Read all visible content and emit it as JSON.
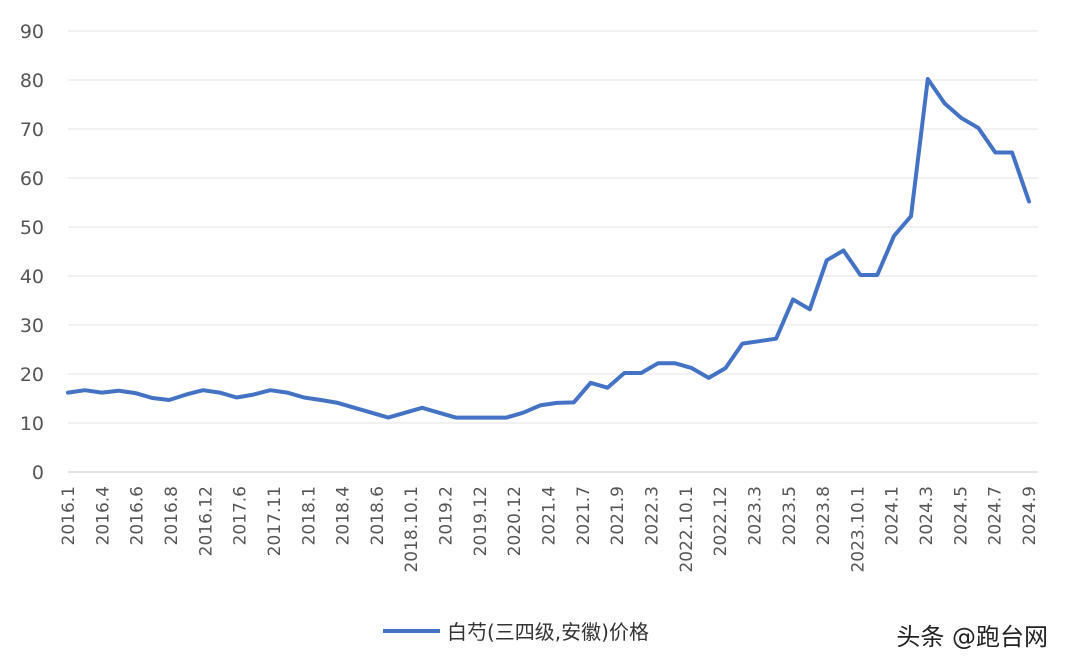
{
  "chart_data": {
    "type": "line",
    "title": "",
    "xlabel": "",
    "ylabel": "",
    "ylim": [
      0,
      90
    ],
    "yticks": [
      0,
      10,
      20,
      30,
      40,
      50,
      60,
      70,
      80,
      90
    ],
    "grid": true,
    "legend_position": "bottom",
    "x_tick_labels": [
      "2016.1",
      "2016.4",
      "2016.6",
      "2016.8",
      "2016.12",
      "2017.6",
      "2017.11",
      "2018.1",
      "2018.4",
      "2018.6",
      "2018.10.1",
      "2019.2",
      "2019.12",
      "2020.12",
      "2021.4",
      "2021.7",
      "2021.9",
      "2022.3",
      "2022.10.1",
      "2022.12",
      "2023.3",
      "2023.5",
      "2023.8",
      "2023.10.1",
      "2024.1",
      "2024.3",
      "2024.5",
      "2024.7",
      "2024.9"
    ],
    "series": [
      {
        "name": "白芍(三四级,安徽)价格",
        "color": "#4472C4",
        "values": [
          16.2,
          16.7,
          16.2,
          16.6,
          16.1,
          15.1,
          14.7,
          15.8,
          16.7,
          16.2,
          15.2,
          15.8,
          16.7,
          16.2,
          15.2,
          14.7,
          14.1,
          13.1,
          12.1,
          11.1,
          12.1,
          13.1,
          12.1,
          11.1,
          11.1,
          11.1,
          11.1,
          12.1,
          13.6,
          14.1,
          14.2,
          18.2,
          17.2,
          20.2,
          20.2,
          22.2,
          22.2,
          21.2,
          19.2,
          21.2,
          26.2,
          26.7,
          27.2,
          35.2,
          33.2,
          43.2,
          45.2,
          40.2,
          40.2,
          48.2,
          52.2,
          80.2,
          75.2,
          72.2,
          70.2,
          65.2,
          65.2,
          55.2
        ]
      }
    ]
  },
  "watermark": "头条 @跑台网"
}
